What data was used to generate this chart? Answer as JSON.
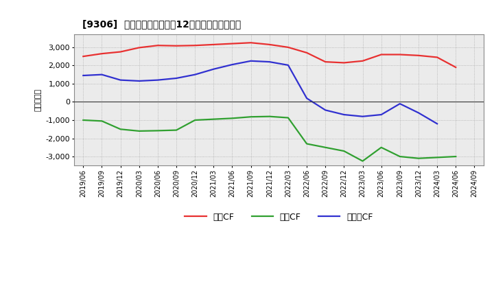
{
  "title": "[9306]  キャッシュフローの12か月移動合計の推移",
  "ylabel": "（百万円）",
  "x_labels": [
    "2019/06",
    "2019/09",
    "2019/12",
    "2020/03",
    "2020/06",
    "2020/09",
    "2020/12",
    "2021/03",
    "2021/06",
    "2021/09",
    "2021/12",
    "2022/03",
    "2022/06",
    "2022/09",
    "2022/12",
    "2023/03",
    "2023/06",
    "2023/09",
    "2023/12",
    "2024/03",
    "2024/06",
    "2024/09"
  ],
  "eigyo_cf": [
    2500,
    2650,
    2750,
    2980,
    3100,
    3080,
    3100,
    3150,
    3200,
    3250,
    3150,
    3000,
    2700,
    2200,
    2150,
    2250,
    2600,
    2600,
    2550,
    2450,
    1900,
    null
  ],
  "toshi_cf": [
    -1000,
    -1050,
    -1500,
    -1600,
    -1580,
    -1550,
    -1000,
    -950,
    -900,
    -820,
    -800,
    -870,
    -2300,
    -2500,
    -2700,
    -3250,
    -2500,
    -3000,
    -3100,
    -3050,
    -3000,
    null
  ],
  "free_cf": [
    1450,
    1500,
    1200,
    1150,
    1200,
    1300,
    1500,
    1800,
    2050,
    2250,
    2200,
    2020,
    200,
    -450,
    -700,
    -800,
    -700,
    -100,
    -600,
    -1200,
    null,
    null
  ],
  "ylim": [
    -3500,
    3700
  ],
  "yticks": [
    -3000,
    -2000,
    -1000,
    0,
    1000,
    2000,
    3000
  ],
  "colors": {
    "eigyo": "#e83030",
    "toshi": "#30a030",
    "free": "#3030d0"
  },
  "bg_color": "#ffffff",
  "plot_bg_color": "#ebebeb",
  "grid_color": "#aaaaaa",
  "legend_labels": [
    "営業CF",
    "投資CF",
    "フリーCF"
  ]
}
